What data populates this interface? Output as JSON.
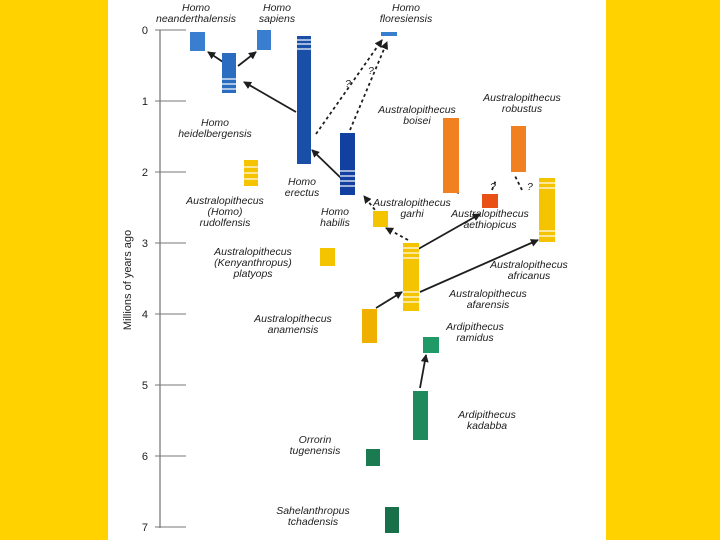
{
  "axis": {
    "label": "Millions of years ago",
    "ticks": [
      "0",
      "1",
      "2",
      "3",
      "4",
      "5",
      "6",
      "7"
    ]
  },
  "colors": {
    "background": "#FFD200",
    "homo_light": "#3a7fcf",
    "homo_dark": "#1240a0",
    "australopith": "#f5c400",
    "robust": "#f08020",
    "early_hominin": "#1f9a66"
  },
  "species": [
    {
      "id": "neanderthalensis",
      "line1": "Homo",
      "line2": "neanderthalensis"
    },
    {
      "id": "sapiens",
      "line1": "Homo",
      "line2": "sapiens"
    },
    {
      "id": "floresiensis",
      "line1": "Homo",
      "line2": "floresiensis"
    },
    {
      "id": "heidelbergensis",
      "line1": "Homo",
      "line2": "heidelbergensis"
    },
    {
      "id": "erectus",
      "line1": "Homo",
      "line2": "erectus"
    },
    {
      "id": "habilis",
      "line1": "Homo",
      "line2": "habilis"
    },
    {
      "id": "rudolfensis",
      "line1": "Australopithecus",
      "line2": "(Homo)",
      "line3": "rudolfensis"
    },
    {
      "id": "platyops",
      "line1": "Australopithecus",
      "line2": "(Kenyanthropus)",
      "line3": "platyops"
    },
    {
      "id": "anamensis",
      "line1": "Australopithecus",
      "line2": "anamensis"
    },
    {
      "id": "garhi",
      "line1": "Australopithecus",
      "line2": "garhi"
    },
    {
      "id": "boisei",
      "line1": "Australopithecus",
      "line2": "boisei"
    },
    {
      "id": "robustus",
      "line1": "Australopithecus",
      "line2": "robustus"
    },
    {
      "id": "aethiopicus",
      "line1": "Australopithecus",
      "line2": "aethiopicus"
    },
    {
      "id": "africanus",
      "line1": "Australopithecus",
      "line2": "africanus"
    },
    {
      "id": "afarensis",
      "line1": "Australopithecus",
      "line2": "afarensis"
    },
    {
      "id": "ramidus",
      "line1": "Ardipithecus",
      "line2": "ramidus"
    },
    {
      "id": "kadabba",
      "line1": "Ardipithecus",
      "line2": "kadabba"
    },
    {
      "id": "tugenensis",
      "line1": "Orrorin",
      "line2": "tugenensis"
    },
    {
      "id": "tchadensis",
      "line1": "Sahelanthropus",
      "line2": "tchadensis"
    }
  ],
  "uncertain_mark": "?"
}
